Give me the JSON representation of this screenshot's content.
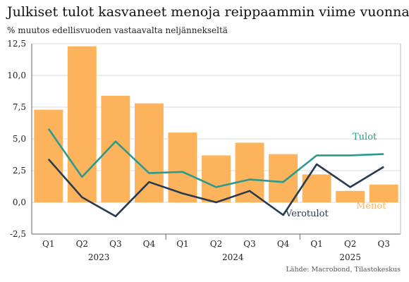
{
  "title": "Julkiset tulot kasvaneet menoja reippaammin viime vuonna",
  "subtitle": "% muutos edellisvuoden vastaavalta neljännekseltä",
  "source": "Lähde: Macrobond, Tilastokeskus",
  "chart_data": {
    "type": "bar",
    "categories": [
      "Q1",
      "Q2",
      "Q3",
      "Q4",
      "Q1",
      "Q2",
      "Q3",
      "Q4",
      "Q1",
      "Q2",
      "Q3"
    ],
    "year_labels": [
      "2023",
      "2024",
      "2025"
    ],
    "ylim": [
      -2.5,
      12.5
    ],
    "yticks": [
      -2.5,
      0,
      2.5,
      5,
      7.5,
      10,
      12.5
    ],
    "ytick_labels": [
      "-2,5",
      "0,0",
      "2,5",
      "5,0",
      "7,5",
      "10,0",
      "12,5"
    ],
    "grid": true,
    "series": [
      {
        "name": "Menot",
        "type": "bar",
        "color": "#FDB35B",
        "values": [
          7.3,
          12.3,
          8.4,
          7.8,
          5.5,
          3.7,
          4.7,
          3.8,
          2.2,
          0.9,
          1.4
        ]
      },
      {
        "name": "Tulot",
        "type": "line",
        "color": "#2A9A8E",
        "values": [
          5.8,
          2.0,
          4.8,
          2.3,
          2.4,
          1.2,
          1.8,
          1.6,
          3.7,
          3.7,
          3.8
        ]
      },
      {
        "name": "Verotulot",
        "type": "line",
        "color": "#283A50",
        "values": [
          3.4,
          0.4,
          -1.1,
          1.6,
          0.7,
          0.0,
          0.9,
          -1.0,
          3.0,
          1.2,
          2.8
        ]
      }
    ]
  }
}
